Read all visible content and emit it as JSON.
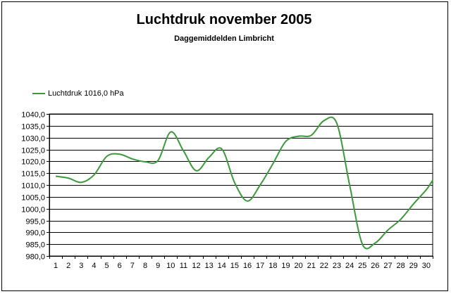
{
  "chart_data": {
    "type": "line",
    "title": "Luchtdruk november 2005",
    "subtitle": "Daggemiddelden Limbricht",
    "xlabel": "",
    "ylabel": "",
    "ylim": [
      980,
      1040
    ],
    "grid": true,
    "legend_placement": "top-left",
    "legend": [
      "Luchtdruk 1016,0 hPa"
    ],
    "colors": {
      "series": "#3a9a3a",
      "grid": "#000000",
      "plot_bg": "#ffffff"
    },
    "y_ticks": [
      "980,0",
      "985,0",
      "990,0",
      "995,0",
      "1000,0",
      "1005,0",
      "1010,0",
      "1015,0",
      "1020,0",
      "1025,0",
      "1030,0",
      "1035,0",
      "1040,0"
    ],
    "categories": [
      "1",
      "2",
      "3",
      "4",
      "5",
      "6",
      "7",
      "8",
      "9",
      "10",
      "11",
      "12",
      "13",
      "14",
      "15",
      "16",
      "17",
      "18",
      "19",
      "20",
      "21",
      "22",
      "23",
      "24",
      "25",
      "26",
      "27",
      "28",
      "29",
      "30"
    ],
    "series": [
      {
        "name": "Luchtdruk 1016,0 hPa",
        "values": [
          1013.7,
          1012.9,
          1011.1,
          1014.3,
          1022.1,
          1023.0,
          1021.0,
          1019.8,
          1020.3,
          1032.4,
          1024.4,
          1016.0,
          1021.7,
          1025.2,
          1011.0,
          1003.2,
          1010.0,
          1019.0,
          1028.4,
          1030.6,
          1031.0,
          1037.2,
          1036.0,
          1010.0,
          985.0,
          985.5,
          991.0,
          995.5,
          1002.0,
          1008.0
        ]
      }
    ],
    "end_value": 1012.0
  }
}
